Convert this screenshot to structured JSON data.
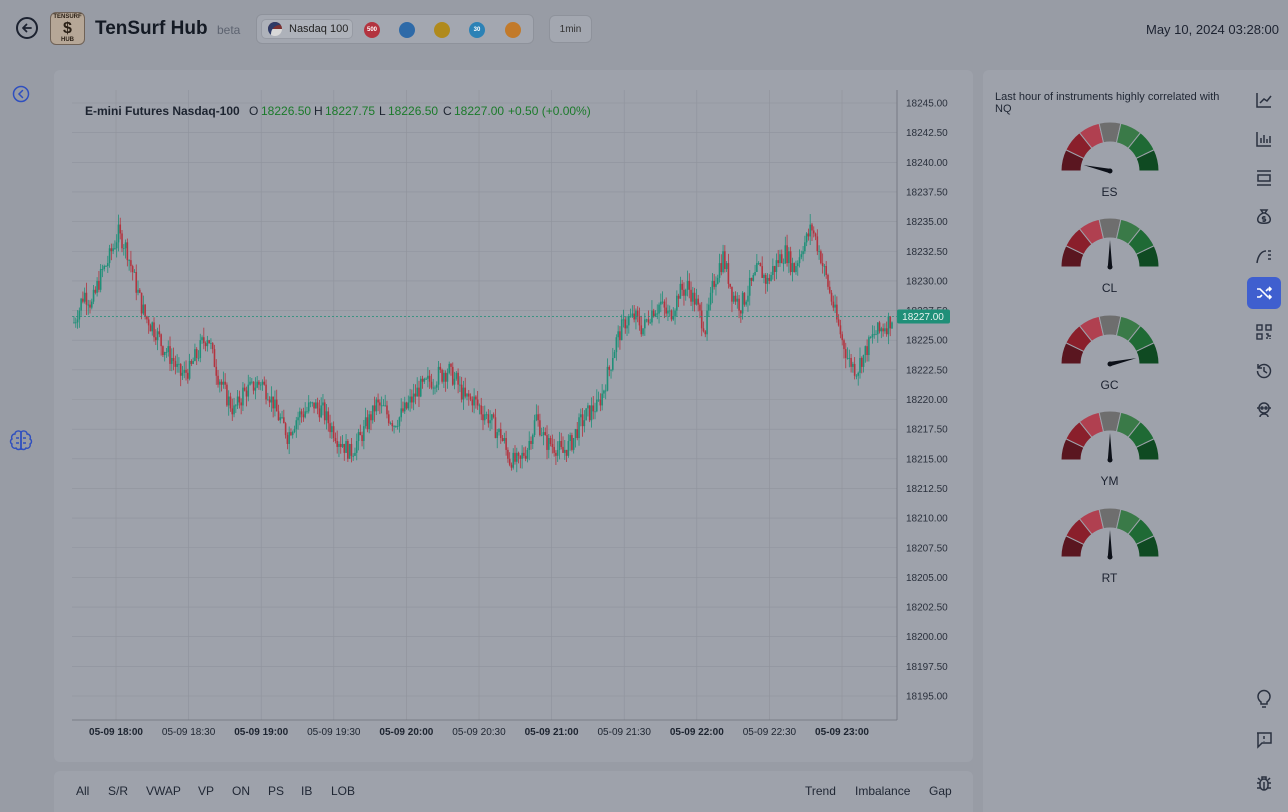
{
  "header": {
    "title": "TenSurf Hub",
    "beta": "beta",
    "logo_text_top": "TENSURF",
    "logo_text_mid": "$",
    "logo_text_bottom": "HUB",
    "instrument_selected": "Nasdaq 100",
    "instrument_chips": [
      {
        "label": "500",
        "color": "#b3333f"
      },
      {
        "label": "",
        "color": "#2e6aa8"
      },
      {
        "label": "",
        "color": "#b08a1c"
      },
      {
        "label": "30",
        "color": "#2c82b6"
      },
      {
        "label": "",
        "color": "#c27a2a"
      }
    ],
    "timeframe": "1min",
    "datetime": "May 10, 2024 03:28:00"
  },
  "chart": {
    "symbol": "E-mini Futures Nasdaq-100",
    "ohlc": {
      "o_label": "O",
      "o": "18226.50",
      "h_label": "H",
      "h": "18227.75",
      "l_label": "L",
      "l": "18226.50",
      "c_label": "C",
      "c": "18227.00",
      "change": "+0.50 (+0.00%)"
    },
    "last_price": "18227.00",
    "colors": {
      "up": "#1f8f78",
      "down": "#b3343f",
      "last": "#1f8f78"
    }
  },
  "chart_data": {
    "type": "candlestick",
    "title": "E-mini Futures Nasdaq-100",
    "y_ticks": [
      "18245.00",
      "18242.50",
      "18240.00",
      "18237.50",
      "18235.00",
      "18232.50",
      "18230.00",
      "18227.50",
      "18225.00",
      "18222.50",
      "18220.00",
      "18217.50",
      "18215.00",
      "18212.50",
      "18210.00",
      "18207.50",
      "18205.00",
      "18202.50",
      "18200.00",
      "18197.50",
      "18195.00"
    ],
    "ylim": [
      18192.5,
      18246.25
    ],
    "x_ticks": [
      {
        "label": "05-09 18:00",
        "bold": true
      },
      {
        "label": "05-09 18:30",
        "bold": false
      },
      {
        "label": "05-09 19:00",
        "bold": true
      },
      {
        "label": "05-09 19:30",
        "bold": false
      },
      {
        "label": "05-09 20:00",
        "bold": true
      },
      {
        "label": "05-09 20:30",
        "bold": false
      },
      {
        "label": "05-09 21:00",
        "bold": true
      },
      {
        "label": "05-09 21:30",
        "bold": false
      },
      {
        "label": "05-09 22:00",
        "bold": true
      },
      {
        "label": "05-09 22:30",
        "bold": false
      },
      {
        "label": "05-09 23:00",
        "bold": true
      }
    ],
    "close_path": [
      [
        0,
        18226.5
      ],
      [
        6,
        18229.0
      ],
      [
        10,
        18228.0
      ],
      [
        15,
        18230.5
      ],
      [
        20,
        18232.0
      ],
      [
        25,
        18234.0
      ],
      [
        30,
        18232.5
      ],
      [
        35,
        18229.5
      ],
      [
        40,
        18227.0
      ],
      [
        45,
        18226.0
      ],
      [
        50,
        18224.5
      ],
      [
        55,
        18223.5
      ],
      [
        60,
        18222.0
      ],
      [
        65,
        18222.5
      ],
      [
        70,
        18224.0
      ],
      [
        75,
        18225.5
      ],
      [
        80,
        18222.5
      ],
      [
        85,
        18220.5
      ],
      [
        90,
        18219.0
      ],
      [
        95,
        18220.5
      ],
      [
        100,
        18221.0
      ],
      [
        105,
        18221.5
      ],
      [
        110,
        18220.5
      ],
      [
        115,
        18218.5
      ],
      [
        120,
        18217.0
      ],
      [
        125,
        18218.5
      ],
      [
        130,
        18219.0
      ],
      [
        135,
        18219.5
      ],
      [
        140,
        18219.0
      ],
      [
        145,
        18217.5
      ],
      [
        150,
        18216.5
      ],
      [
        155,
        18215.5
      ],
      [
        160,
        18216.5
      ],
      [
        165,
        18218.0
      ],
      [
        170,
        18219.5
      ],
      [
        175,
        18219.0
      ],
      [
        180,
        18218.0
      ],
      [
        185,
        18219.0
      ],
      [
        190,
        18220.0
      ],
      [
        195,
        18221.0
      ],
      [
        200,
        18221.5
      ],
      [
        205,
        18222.0
      ],
      [
        210,
        18222.5
      ],
      [
        215,
        18221.5
      ],
      [
        220,
        18220.0
      ],
      [
        225,
        18220.0
      ],
      [
        230,
        18219.0
      ],
      [
        235,
        18218.0
      ],
      [
        240,
        18217.0
      ],
      [
        245,
        18215.0
      ],
      [
        250,
        18214.5
      ],
      [
        255,
        18216.0
      ],
      [
        260,
        18218.5
      ],
      [
        265,
        18216.5
      ],
      [
        270,
        18216.0
      ],
      [
        275,
        18215.5
      ],
      [
        280,
        18216.5
      ],
      [
        285,
        18218.0
      ],
      [
        290,
        18219.0
      ],
      [
        295,
        18219.5
      ],
      [
        300,
        18222.0
      ],
      [
        305,
        18225.0
      ],
      [
        310,
        18226.5
      ],
      [
        315,
        18227.0
      ],
      [
        320,
        18226.0
      ],
      [
        325,
        18227.5
      ],
      [
        330,
        18228.0
      ],
      [
        335,
        18227.0
      ],
      [
        340,
        18229.0
      ],
      [
        345,
        18229.5
      ],
      [
        350,
        18228.0
      ],
      [
        355,
        18226.0
      ],
      [
        360,
        18230.0
      ],
      [
        365,
        18232.0
      ],
      [
        370,
        18229.0
      ],
      [
        375,
        18228.0
      ],
      [
        380,
        18229.5
      ],
      [
        385,
        18231.0
      ],
      [
        390,
        18230.0
      ],
      [
        395,
        18231.5
      ],
      [
        400,
        18232.5
      ],
      [
        405,
        18231.0
      ],
      [
        410,
        18233.0
      ],
      [
        415,
        18234.5
      ],
      [
        420,
        18232.0
      ],
      [
        425,
        18229.0
      ],
      [
        430,
        18226.0
      ],
      [
        435,
        18223.5
      ],
      [
        440,
        18222.5
      ],
      [
        445,
        18224.0
      ],
      [
        450,
        18225.5
      ],
      [
        455,
        18226.0
      ],
      [
        460,
        18227.0
      ]
    ],
    "last_price": 18227.0
  },
  "bottom_bar": {
    "left": [
      "All",
      "S/R",
      "VWAP",
      "VP",
      "ON",
      "PS",
      "IB",
      "LOB"
    ],
    "right": [
      "Trend",
      "Imbalance",
      "Gap"
    ]
  },
  "correlation": {
    "title": "Last hour of instruments highly correlated with NQ",
    "gauges": [
      {
        "label": "ES",
        "value": 0.07
      },
      {
        "label": "CL",
        "value": 0.5
      },
      {
        "label": "GC",
        "value": 0.93
      },
      {
        "label": "YM",
        "value": 0.5
      },
      {
        "label": "RT",
        "value": 0.5
      }
    ]
  },
  "icon_rail": [
    "line-chart-icon",
    "bar-chart-icon",
    "layout-icon",
    "money-bag-icon",
    "curve-icon",
    "shuffle-icon",
    "qr-icon",
    "history-icon",
    "robot-icon"
  ],
  "icon_rail_bottom": [
    "lightbulb-icon",
    "feedback-icon",
    "bug-icon"
  ]
}
